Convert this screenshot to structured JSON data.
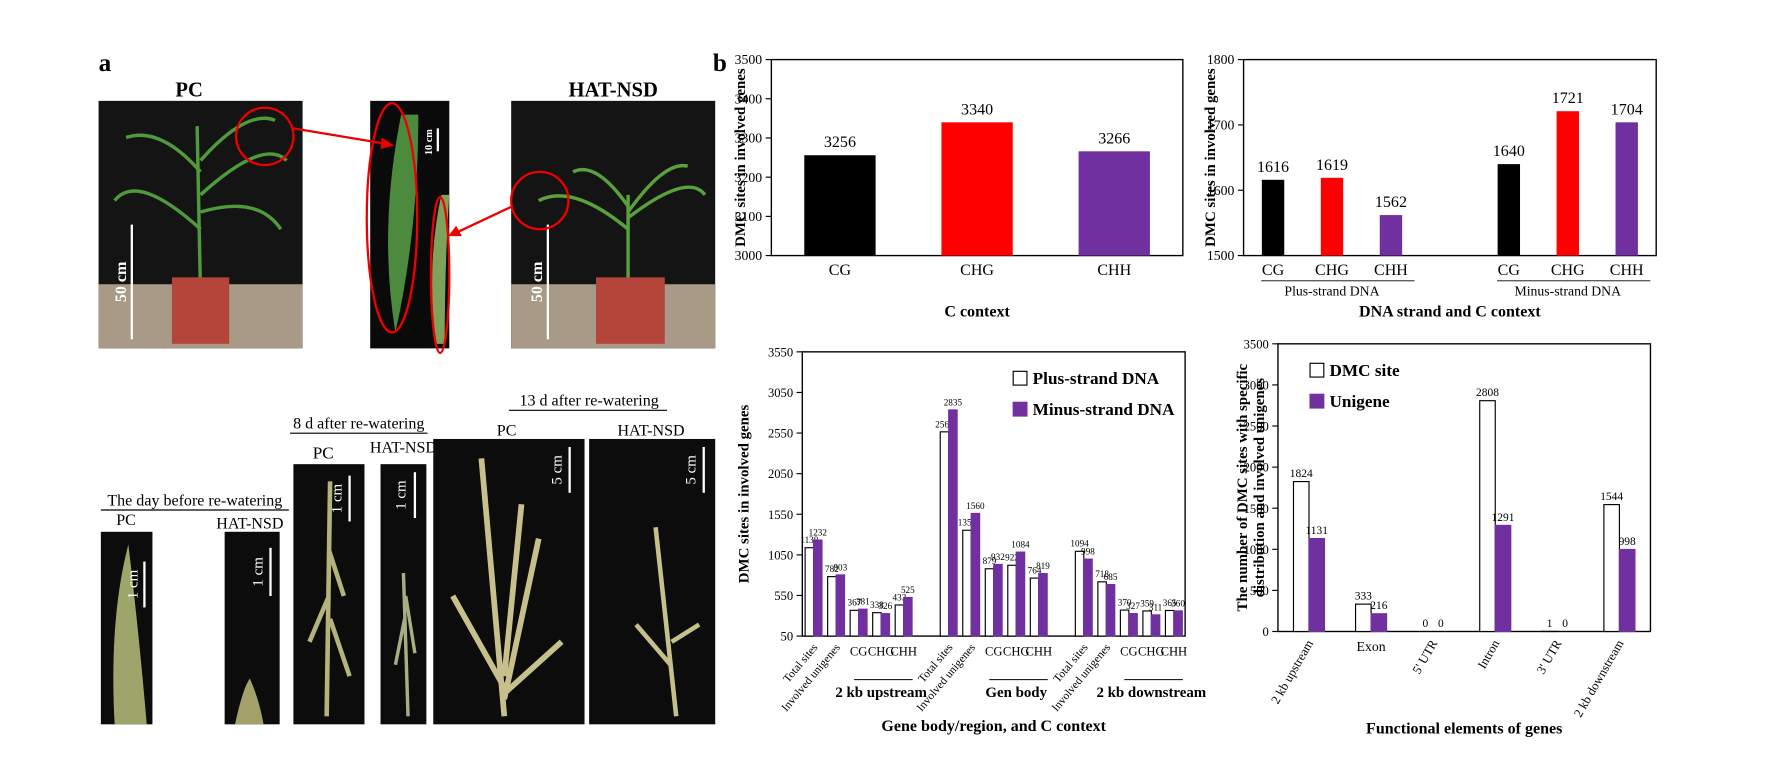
{
  "panel_a": {
    "label": "a",
    "top": {
      "left_title": "PC",
      "right_title": "HAT-NSD",
      "scale_left": "50 cm",
      "scale_inset": "10 cm",
      "scale_right": "50 cm"
    },
    "bottom": [
      {
        "title": "The day before re-watering",
        "left": "PC",
        "right": "HAT-NSD",
        "scale_left": "1 cm",
        "scale_right": "1 cm"
      },
      {
        "title": "8 d after re-watering",
        "left": "PC",
        "right": "HAT-NSD",
        "scale_left": "1 cm",
        "scale_right": "1 cm"
      },
      {
        "title": "13 d after re-watering",
        "left": "PC",
        "right": "HAT-NSD",
        "scale_left": "5 cm",
        "scale_right": "5 cm"
      }
    ]
  },
  "panel_b": {
    "label": "b"
  },
  "chart_data": [
    {
      "type": "bar",
      "y_label": "DMC sites in involved genes",
      "x_label": "C context",
      "categories": [
        "CG",
        "CHG",
        "CHH"
      ],
      "values": [
        3256,
        3340,
        3266
      ],
      "colors": [
        "#000000",
        "#ff0000",
        "#7030a0"
      ],
      "ylim": [
        3000,
        3500
      ],
      "yticks": [
        3000,
        3100,
        3200,
        3300,
        3400,
        3500
      ],
      "grid": false
    },
    {
      "type": "bar",
      "y_label": "DMC sites in involved genes",
      "x_label": "DNA strand and C context",
      "groups": [
        {
          "name": "Plus-strand DNA",
          "categories": [
            "CG",
            "CHG",
            "CHH"
          ]
        },
        {
          "name": "Minus-strand DNA",
          "categories": [
            "CG",
            "CHG",
            "CHH"
          ]
        }
      ],
      "values": [
        1616,
        1619,
        1562,
        1640,
        1721,
        1704
      ],
      "colors": [
        "#000000",
        "#ff0000",
        "#7030a0",
        "#000000",
        "#ff0000",
        "#7030a0"
      ],
      "ylim": [
        1500,
        1800
      ],
      "yticks": [
        1500,
        1600,
        1700,
        1800
      ],
      "grid": false
    },
    {
      "type": "bar",
      "y_label": "DMC sites in involved genes",
      "x_label": "Gene body/region, and C context",
      "groups": [
        {
          "name": "2 kb upstream",
          "categories": [
            "Total sites",
            "Involved unigenes",
            "CG",
            "CHG",
            "CHH"
          ]
        },
        {
          "name": "Gen body",
          "categories": [
            "Total sites",
            "Involved unigenes",
            "CG",
            "CHG",
            "CHH"
          ]
        },
        {
          "name": "2 kb downstream",
          "categories": [
            "Total sites",
            "Involved unigenes",
            "CG",
            "CHG",
            "CHH"
          ]
        }
      ],
      "series": [
        {
          "name": "Plus-strand DNA",
          "color": "#ffffff",
          "values": [
            1138,
            782,
            367,
            338,
            433,
            2565,
            1353,
            879,
            922,
            764,
            1094,
            718,
            370,
            359,
            365
          ]
        },
        {
          "name": "Minus-strand DNA",
          "color": "#7030a0",
          "values": [
            1232,
            803,
            381,
            326,
            525,
            2835,
            1560,
            932,
            1084,
            819,
            998,
            685,
            327,
            311,
            360
          ]
        }
      ],
      "legend": "upper right",
      "ylim": [
        50,
        3550
      ],
      "yticks": [
        50,
        550,
        1050,
        1550,
        2050,
        2550,
        3050,
        3550
      ],
      "grid": false
    },
    {
      "type": "bar",
      "y_label": [
        "The number of DMC sites with specific",
        "distribution and involved unigenes"
      ],
      "x_label": "Functional elements of  genes",
      "categories": [
        "2 kb upstream",
        "Exon",
        "5' UTR",
        "Intron",
        "3' UTR",
        "2 kb downstream"
      ],
      "series": [
        {
          "name": "DMC site",
          "color": "#ffffff",
          "values": [
            1824,
            333,
            0,
            2808,
            1,
            1544
          ]
        },
        {
          "name": "Unigene",
          "color": "#7030a0",
          "values": [
            1131,
            216,
            0,
            1291,
            0,
            998
          ]
        }
      ],
      "legend": "upper left",
      "ylim": [
        0,
        3500
      ],
      "yticks": [
        0,
        500,
        1000,
        1500,
        2000,
        2500,
        3000,
        3500
      ],
      "grid": false
    }
  ]
}
